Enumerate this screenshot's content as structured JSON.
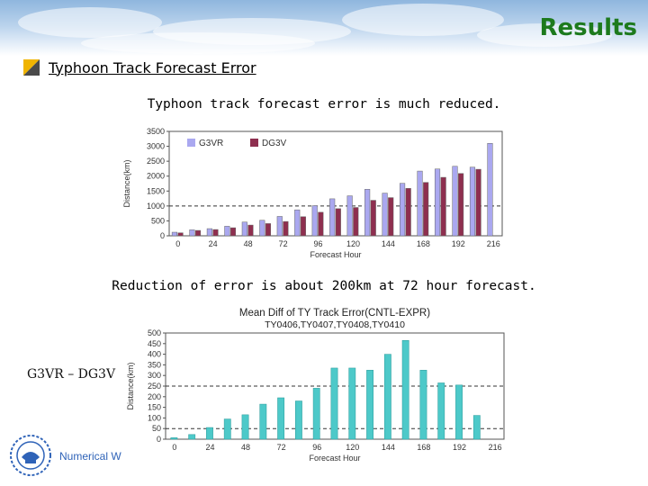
{
  "slide": {
    "title": "Results"
  },
  "section": {
    "title": "Typhoon Track Forecast Error"
  },
  "caption1": "Typhoon track forecast error is much reduced.",
  "caption2": "Reduction of error is about 200km at 72 hour forecast.",
  "side_label": "G3VR – DG3V",
  "footer": {
    "text": "Numerical W"
  },
  "colors": {
    "title": "#1d7a1d",
    "g3vr": "#aaa8f0",
    "dg3v": "#8e2f4f",
    "diff": "#4dc9c9"
  },
  "chart_data": [
    {
      "type": "bar",
      "title": "",
      "xlabel": "Forecast Hour",
      "ylabel": "Distance(km)",
      "categories": [
        "0",
        "12",
        "24",
        "36",
        "48",
        "60",
        "72",
        "84",
        "96",
        "108",
        "120",
        "132",
        "144",
        "156",
        "168",
        "180",
        "192",
        "204",
        "216"
      ],
      "x_tick_labels": [
        "0",
        "24",
        "48",
        "72",
        "96",
        "120",
        "144",
        "168",
        "192",
        "216"
      ],
      "ylim": [
        0,
        3500
      ],
      "y_ticks": [
        0,
        500,
        1000,
        1500,
        2000,
        2500,
        3000,
        3500
      ],
      "reference_line": 1000,
      "legend_position": "top-left",
      "series": [
        {
          "name": "G3VR",
          "values": [
            120,
            200,
            240,
            320,
            460,
            520,
            650,
            870,
            1010,
            1240,
            1340,
            1560,
            1430,
            1760,
            2170,
            2240,
            2330,
            2300,
            3100
          ]
        },
        {
          "name": "DG3V",
          "values": [
            100,
            180,
            210,
            270,
            360,
            410,
            480,
            640,
            790,
            910,
            950,
            1190,
            1280,
            1590,
            1790,
            1960,
            2090,
            2230,
            0
          ]
        }
      ]
    },
    {
      "type": "bar",
      "title": "Mean Diff of TY Track Error(CNTL-EXPR)",
      "subtitle": "TY0406,TY0407,TY0408,TY0410",
      "xlabel": "Forecast Hour",
      "ylabel": "Distance(km)",
      "categories": [
        "0",
        "12",
        "24",
        "36",
        "48",
        "60",
        "72",
        "84",
        "96",
        "108",
        "120",
        "132",
        "144",
        "156",
        "168",
        "180",
        "192",
        "204",
        "216"
      ],
      "x_tick_labels": [
        "0",
        "24",
        "48",
        "72",
        "96",
        "120",
        "144",
        "168",
        "192",
        "216"
      ],
      "ylim": [
        0,
        500
      ],
      "y_ticks": [
        0,
        50,
        100,
        150,
        200,
        250,
        300,
        350,
        400,
        450,
        500
      ],
      "reference_lines": [
        50,
        250
      ],
      "series": [
        {
          "name": "",
          "values": [
            7,
            22,
            55,
            95,
            115,
            165,
            195,
            180,
            240,
            335,
            335,
            325,
            400,
            465,
            325,
            265,
            255,
            112,
            0
          ]
        }
      ]
    }
  ]
}
